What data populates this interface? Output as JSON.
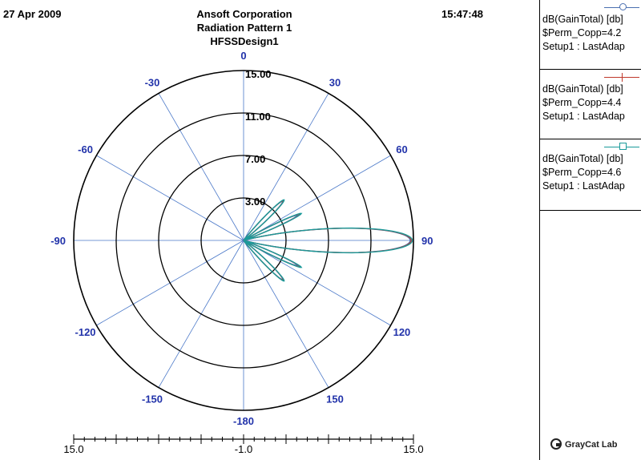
{
  "header": {
    "date": "27 Apr 2009",
    "time": "15:47:48",
    "company": "Ansoft Corporation",
    "plot_title": "Radiation Pattern 1",
    "design": "HFSSDesign1"
  },
  "legend": [
    {
      "line1": "dB(GainTotal) [db]",
      "line2": "$Perm_Copp=4.2",
      "line3": "Setup1 : LastAdap",
      "color": "#4a6fb0",
      "marker": "circle"
    },
    {
      "line1": "dB(GainTotal) [db]",
      "line2": "$Perm_Copp=4.4",
      "line3": "Setup1 : LastAdap",
      "color": "#c0392b",
      "marker": "plus"
    },
    {
      "line1": "dB(GainTotal) [db]",
      "line2": "$Perm_Copp=4.6",
      "line3": "Setup1 : LastAdap",
      "color": "#1a9a9a",
      "marker": "square"
    }
  ],
  "brand": "GrayCat Lab",
  "chart_data": {
    "type": "polar",
    "title": "Radiation Pattern 1",
    "r_min": -1.0,
    "r_max": 15.0,
    "r_ticks": [
      3.0,
      7.0,
      11.0,
      15.0
    ],
    "r_tick_labels": [
      "3.00",
      "7.00",
      "11.00",
      "15.00"
    ],
    "angle_ticks": [
      0,
      30,
      60,
      90,
      120,
      150,
      -180,
      -150,
      -120,
      -90,
      -60,
      -30
    ],
    "radial_scale_labels": [
      "15.0",
      "-1.0",
      "15.0"
    ],
    "grid": true,
    "series": [
      {
        "name": "$Perm_Copp=4.2",
        "color": "#4a6fb0",
        "lobes": [
          {
            "center_deg": 90,
            "peak_db": 14.7,
            "half_width_deg": 8
          },
          {
            "center_deg": 45,
            "peak_db": 4.2,
            "half_width_deg": 4
          },
          {
            "center_deg": 135,
            "peak_db": 4.2,
            "half_width_deg": 4
          },
          {
            "center_deg": 65,
            "peak_db": 4.6,
            "half_width_deg": 3
          },
          {
            "center_deg": 115,
            "peak_db": 4.6,
            "half_width_deg": 3
          }
        ]
      },
      {
        "name": "$Perm_Copp=4.4",
        "color": "#c0392b",
        "lobes": [
          {
            "center_deg": 90,
            "peak_db": 14.8,
            "half_width_deg": 8
          },
          {
            "center_deg": 45,
            "peak_db": 4.3,
            "half_width_deg": 4
          },
          {
            "center_deg": 135,
            "peak_db": 4.3,
            "half_width_deg": 4
          },
          {
            "center_deg": 65,
            "peak_db": 4.9,
            "half_width_deg": 3
          },
          {
            "center_deg": 115,
            "peak_db": 4.9,
            "half_width_deg": 3
          }
        ]
      },
      {
        "name": "$Perm_Copp=4.6",
        "color": "#1a9a9a",
        "lobes": [
          {
            "center_deg": 90,
            "peak_db": 14.9,
            "half_width_deg": 8
          },
          {
            "center_deg": 45,
            "peak_db": 4.4,
            "half_width_deg": 4
          },
          {
            "center_deg": 135,
            "peak_db": 4.4,
            "half_width_deg": 4
          },
          {
            "center_deg": 65,
            "peak_db": 5.0,
            "half_width_deg": 3
          },
          {
            "center_deg": 115,
            "peak_db": 5.0,
            "half_width_deg": 3
          }
        ]
      }
    ]
  }
}
